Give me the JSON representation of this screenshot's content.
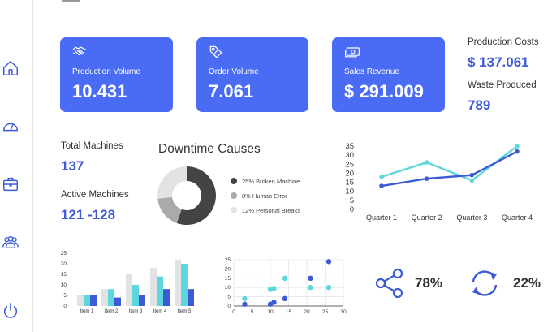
{
  "colors": {
    "accent": "#4a6cf5",
    "value_blue": "#3f5bd8",
    "teal": "#5dd6dc",
    "blue": "#3d5ad6",
    "dark_gray": "#444444",
    "mid_gray": "#aaaaaa",
    "light_gray": "#e2e2e2"
  },
  "sidebar": {
    "items": [
      {
        "icon": "home-icon"
      },
      {
        "icon": "gauge-icon"
      },
      {
        "icon": "briefcase-icon"
      },
      {
        "icon": "users-icon"
      },
      {
        "icon": "power-icon"
      }
    ]
  },
  "cards": [
    {
      "icon": "handshake-icon",
      "label": "Production Volume",
      "value": "10.431"
    },
    {
      "icon": "tag-icon",
      "label": "Order Volume",
      "value": "7.061"
    },
    {
      "icon": "banknote-icon",
      "label": "Sales Revenue",
      "value": "$ 291.009"
    }
  ],
  "side_stats": {
    "production_costs_label": "Production Costs",
    "production_costs_value": "$ 137.061",
    "waste_label": "Waste Produced",
    "waste_value": "789"
  },
  "machines": {
    "total_label": "Total Machines",
    "total_value": "137",
    "active_label": "Active Machines",
    "active_value": "121 -128"
  },
  "chart_data": [
    {
      "type": "pie",
      "title": "Downtime Causes",
      "labels": [
        "25% Broken Machine",
        "8% Human Error",
        "12% Personal Breaks"
      ],
      "values": [
        25,
        8,
        12
      ],
      "colors": [
        "#444444",
        "#aaaaaa",
        "#e2e2e2"
      ],
      "legend": "right"
    },
    {
      "type": "line",
      "categories": [
        "Quarter 1",
        "Quarter 2",
        "Quarter 3",
        "Quarter 4"
      ],
      "ylim": [
        0,
        35
      ],
      "yticks": [
        0,
        5,
        10,
        15,
        20,
        25,
        30,
        35
      ],
      "grid": false,
      "series": [
        {
          "values": [
            18,
            26,
            16,
            35
          ],
          "color": "#5dd6dc"
        },
        {
          "values": [
            13,
            17,
            19,
            32
          ],
          "color": "#3d5ad6"
        }
      ]
    },
    {
      "type": "bar",
      "categories": [
        "Item 1",
        "Item 2",
        "Item 3",
        "Item 4",
        "Item 5"
      ],
      "ylim": [
        0,
        25
      ],
      "yticks": [
        0,
        5,
        10,
        15,
        20,
        25
      ],
      "grid": false,
      "series": [
        {
          "values": [
            5,
            8,
            15,
            18,
            22
          ],
          "color": "#e2e2e2"
        },
        {
          "values": [
            5,
            8,
            10,
            14,
            20
          ],
          "color": "#5dd6dc"
        },
        {
          "values": [
            5,
            4,
            5,
            8,
            8
          ],
          "color": "#3d5ad6"
        }
      ]
    },
    {
      "type": "scatter",
      "xlim": [
        0,
        30
      ],
      "ylim": [
        0,
        25
      ],
      "xticks": [
        0,
        5,
        10,
        15,
        20,
        25,
        30
      ],
      "yticks": [
        0,
        5,
        10,
        15,
        20,
        25
      ],
      "grid": true,
      "series": [
        {
          "color": "#5dd6dc",
          "points": [
            [
              3,
              4
            ],
            [
              10,
              9
            ],
            [
              11,
              9.5
            ],
            [
              14,
              15
            ],
            [
              21,
              10
            ],
            [
              26,
              10
            ]
          ]
        },
        {
          "color": "#3d5ad6",
          "points": [
            [
              3,
              1
            ],
            [
              10,
              1
            ],
            [
              11,
              2
            ],
            [
              14,
              4
            ],
            [
              21,
              15
            ],
            [
              26,
              24
            ]
          ]
        }
      ]
    }
  ],
  "kpis": [
    {
      "icon": "share-icon",
      "value": "78%"
    },
    {
      "icon": "refresh-icon",
      "value": "22%"
    }
  ]
}
